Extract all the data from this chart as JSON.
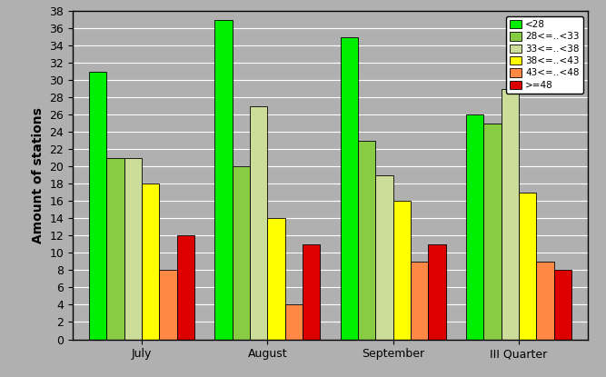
{
  "categories": [
    "July",
    "August",
    "September",
    "III Quarter"
  ],
  "series": [
    {
      "label": "<28",
      "color": "#00ee00",
      "values": [
        31,
        37,
        35,
        26
      ]
    },
    {
      "label": "28<=..<33",
      "color": "#88cc44",
      "values": [
        21,
        20,
        23,
        25
      ]
    },
    {
      "label": "33<=..<38",
      "color": "#ccdd99",
      "values": [
        21,
        27,
        19,
        29
      ]
    },
    {
      "label": "38<=..<43",
      "color": "#ffff00",
      "values": [
        18,
        14,
        16,
        17
      ]
    },
    {
      "label": "43<=..<48",
      "color": "#ff8844",
      "values": [
        8,
        4,
        9,
        9
      ]
    },
    {
      "label": ">=48",
      "color": "#dd0000",
      "values": [
        12,
        11,
        11,
        8
      ]
    }
  ],
  "ylabel": "Amount of stations",
  "ylim": [
    0,
    38
  ],
  "yticks": [
    0,
    2,
    4,
    6,
    8,
    10,
    12,
    14,
    16,
    18,
    20,
    22,
    24,
    26,
    28,
    30,
    32,
    34,
    36,
    38
  ],
  "background_color": "#b0b0b0",
  "grid_color": "#ffffff",
  "bar_edge_color": "#000000",
  "legend_fontsize": 7.5,
  "axis_label_fontsize": 10,
  "tick_fontsize": 9,
  "bar_width": 0.14,
  "fig_width": 6.67,
  "fig_height": 4.15,
  "fig_dpi": 100
}
